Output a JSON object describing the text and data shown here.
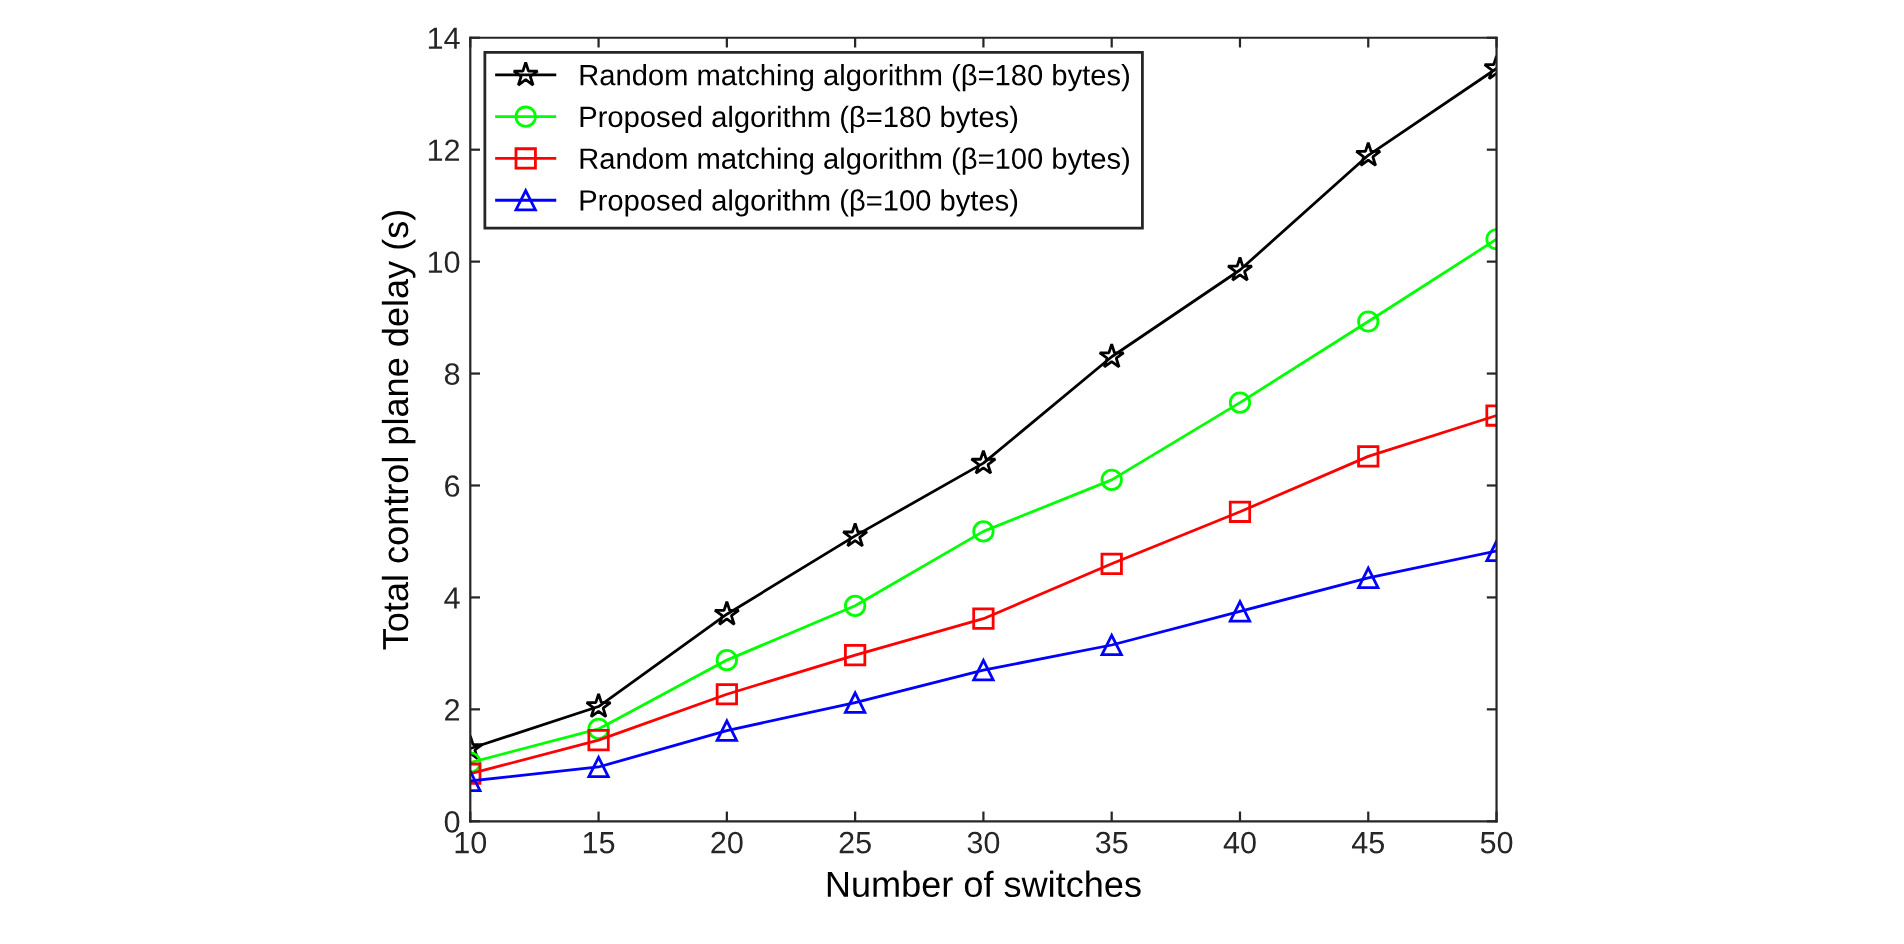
{
  "chart_data": {
    "type": "line",
    "xlabel": "Number of switches",
    "ylabel": "Total control plane delay (s)",
    "x": [
      10,
      15,
      20,
      25,
      30,
      35,
      40,
      45,
      50
    ],
    "series": [
      {
        "name": "Random matching algorithm (β=180 bytes)",
        "color": "#000000",
        "marker": "star",
        "values": [
          1.3,
          2.05,
          3.7,
          5.1,
          6.4,
          8.3,
          9.85,
          11.9,
          13.45
        ]
      },
      {
        "name": "Proposed algorithm (β=180 bytes)",
        "color": "#00ff00",
        "marker": "circle",
        "values": [
          1.05,
          1.65,
          2.88,
          3.85,
          5.18,
          6.1,
          7.48,
          8.93,
          10.4
        ]
      },
      {
        "name": "Random matching algorithm (β=100 bytes)",
        "color": "#ff0000",
        "marker": "square",
        "values": [
          0.85,
          1.45,
          2.27,
          2.97,
          3.62,
          4.6,
          5.53,
          6.52,
          7.25
        ]
      },
      {
        "name": "Proposed algorithm (β=100 bytes)",
        "color": "#0000ff",
        "marker": "triangle",
        "values": [
          0.72,
          0.97,
          1.62,
          2.12,
          2.7,
          3.15,
          3.75,
          4.35,
          4.83
        ]
      }
    ],
    "xlim": [
      10,
      50
    ],
    "xticks": [
      10,
      15,
      20,
      25,
      30,
      35,
      40,
      45,
      50
    ],
    "ylim": [
      0,
      14
    ],
    "yticks": [
      0,
      2,
      4,
      6,
      8,
      10,
      12,
      14
    ],
    "grid": false,
    "legend": "top left",
    "line_style": "solid"
  }
}
